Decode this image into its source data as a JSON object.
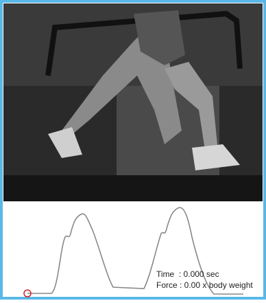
{
  "readout": {
    "time": "Time  : 0.000 sec",
    "force": "Force : 0.00 x body weight"
  }
}
